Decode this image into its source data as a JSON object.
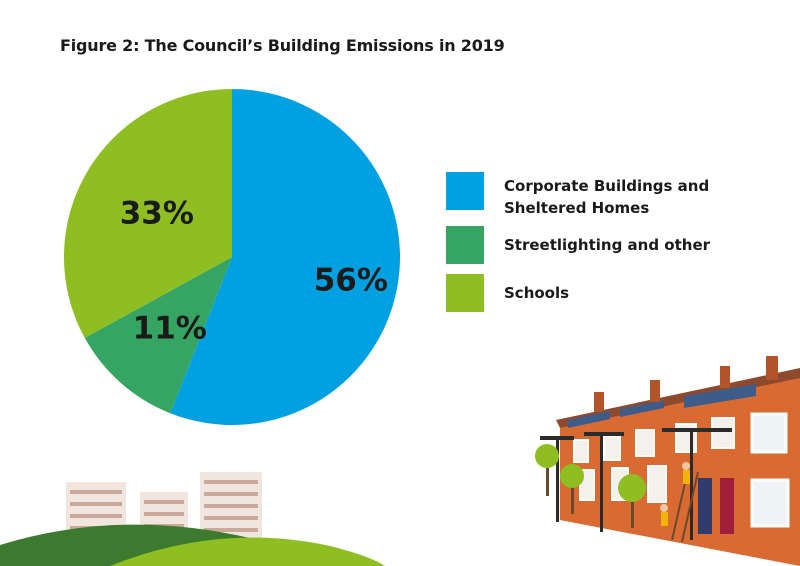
{
  "title": "Figure 2:  The Council’s Building Emissions in 2019",
  "colors": {
    "corporate": "#00A0E1",
    "streetlighting": "#36A462",
    "schools": "#8FBE23"
  },
  "chart_data": {
    "type": "pie",
    "title": "Figure 2:  The Council’s Building Emissions in 2019",
    "slices": [
      {
        "name": "Corporate Buildings and Sheltered Homes",
        "value": 56,
        "label": "56%",
        "color": "#00A0E1"
      },
      {
        "name": "Streetlighting and other",
        "value": 11,
        "label": "11%",
        "color": "#36A462"
      },
      {
        "name": "Schools",
        "value": 33,
        "label": "33%",
        "color": "#8FBE23"
      }
    ],
    "legend_position": "right"
  },
  "legend": {
    "items": [
      {
        "label": "Corporate Buildings and\nSheltered Homes",
        "color": "#00A0E1"
      },
      {
        "label": "Streetlighting and other",
        "color": "#36A462"
      },
      {
        "label": "Schools",
        "color": "#8FBE23"
      }
    ]
  },
  "decoration": {
    "left": "city-skyline-hills-illustration",
    "right": "terraced-houses-solar-panels-illustration"
  }
}
